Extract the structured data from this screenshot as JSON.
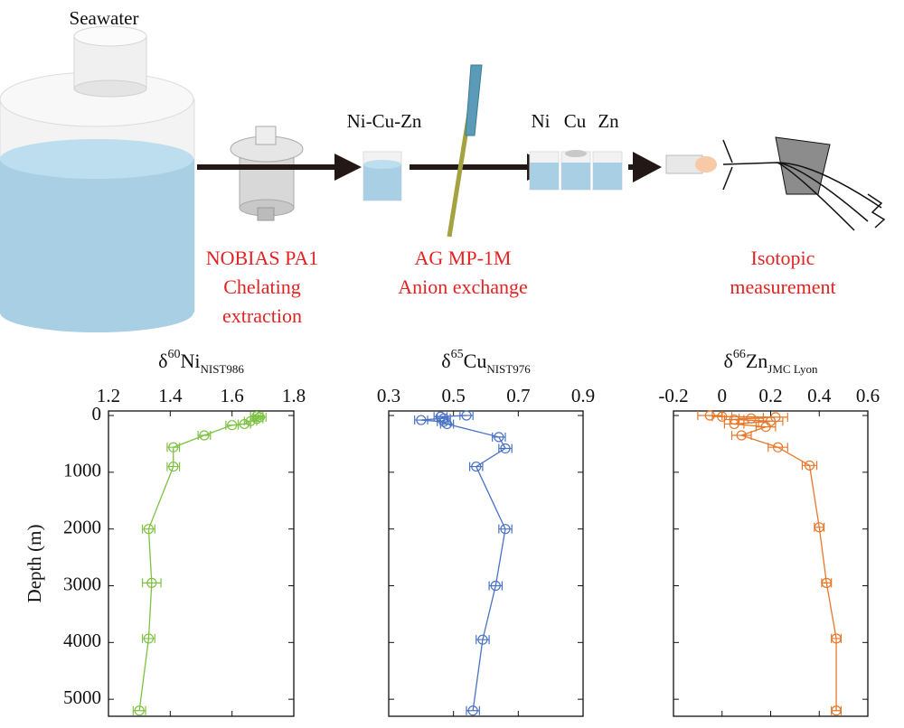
{
  "diagram": {
    "labels": {
      "seawater": "Seawater",
      "mix": "Ni-Cu-Zn",
      "ni": "Ni",
      "cu": "Cu",
      "zn": "Zn"
    },
    "steps": [
      {
        "lines": [
          "NOBIAS PA1",
          "Chelating",
          "extraction"
        ]
      },
      {
        "lines": [
          "AG MP-1M",
          "Anion exchange"
        ]
      },
      {
        "lines": [
          "Isotopic",
          "measurement"
        ]
      }
    ]
  },
  "chart_data": [
    {
      "type": "line",
      "title": [
        "δ",
        "60",
        "Ni",
        "NIST986"
      ],
      "ylabel": "Depth (m)",
      "color": "#7dc242",
      "x": [
        1.68,
        1.69,
        1.68,
        1.66,
        1.64,
        1.6,
        1.51,
        1.41,
        1.41,
        1.33,
        1.34,
        1.33,
        1.3
      ],
      "x_error": [
        0.02,
        0.02,
        0.02,
        0.02,
        0.02,
        0.02,
        0.02,
        0.02,
        0.02,
        0.02,
        0.03,
        0.02,
        0.02
      ],
      "y": [
        10,
        30,
        60,
        100,
        150,
        170,
        350,
        560,
        900,
        2000,
        2950,
        3930,
        5200
      ],
      "xlim": [
        1.2,
        1.8
      ],
      "xticks": [
        1.2,
        1.4,
        1.6,
        1.8
      ],
      "ylim": [
        -80,
        5300
      ],
      "yticks": [
        0,
        1000,
        2000,
        3000,
        4000,
        5000
      ],
      "yreverse": true,
      "show_ytick_labels": true
    },
    {
      "type": "line",
      "title": [
        "δ",
        "65",
        "Cu",
        "NIST976"
      ],
      "color": "#4a72c4",
      "x": [
        0.54,
        0.46,
        0.47,
        0.4,
        0.47,
        0.48,
        0.64,
        0.66,
        0.57,
        0.66,
        0.63,
        0.59,
        0.56
      ],
      "x_error": [
        0.02,
        0.02,
        0.02,
        0.02,
        0.02,
        0.02,
        0.02,
        0.02,
        0.02,
        0.02,
        0.02,
        0.02,
        0.02
      ],
      "y": [
        0,
        20,
        50,
        80,
        110,
        150,
        380,
        580,
        900,
        2000,
        3000,
        3950,
        5200
      ],
      "xlim": [
        0.3,
        0.9
      ],
      "xticks": [
        0.3,
        0.5,
        0.7,
        0.9
      ],
      "ylim": [
        -80,
        5300
      ],
      "yticks": [
        0,
        1000,
        2000,
        3000,
        4000,
        5000
      ],
      "yreverse": true,
      "show_ytick_labels": false
    },
    {
      "type": "line",
      "title": [
        "δ",
        "66",
        "Zn",
        "JMC Lyon"
      ],
      "color": "#e8772a",
      "x": [
        -0.05,
        0.0,
        0.22,
        0.12,
        0.05,
        0.2,
        0.05,
        0.18,
        0.08,
        0.23,
        0.36,
        0.4,
        0.43,
        0.47,
        0.47
      ],
      "x_error": [
        0.05,
        0.04,
        0.05,
        0.05,
        0.04,
        0.05,
        0.04,
        0.04,
        0.04,
        0.04,
        0.03,
        0.02,
        0.02,
        0.02,
        0.02
      ],
      "y": [
        0,
        20,
        30,
        50,
        70,
        100,
        150,
        200,
        350,
        560,
        880,
        1970,
        2950,
        3930,
        5200
      ],
      "xlim": [
        -0.2,
        0.6
      ],
      "xticks": [
        -0.2,
        0,
        0.2,
        0.4,
        0.6
      ],
      "ylim": [
        -80,
        5300
      ],
      "yticks": [
        0,
        1000,
        2000,
        3000,
        4000,
        5000
      ],
      "yreverse": true,
      "show_ytick_labels": false
    }
  ]
}
